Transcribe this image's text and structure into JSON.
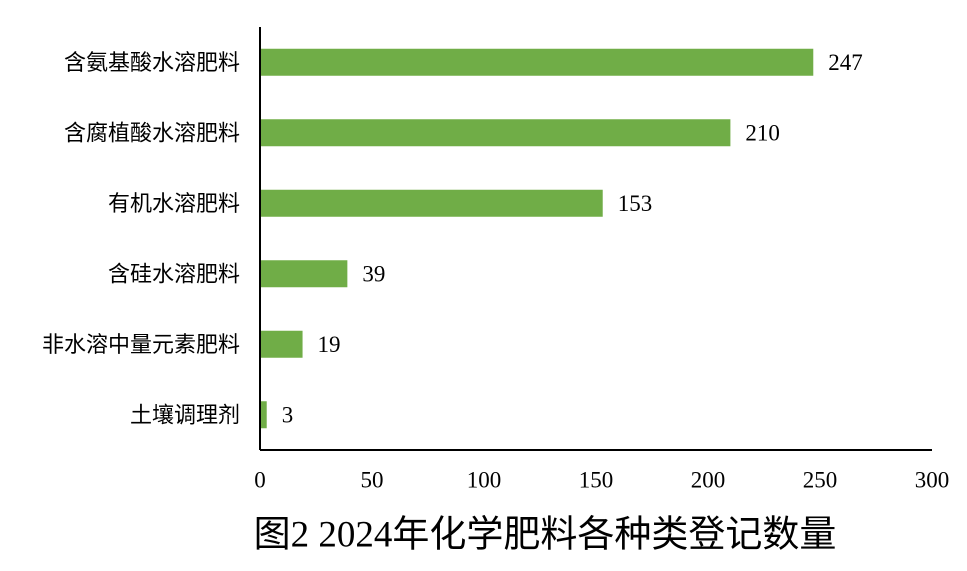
{
  "chart_data": {
    "type": "bar",
    "orientation": "horizontal",
    "title": "图2 2024年化学肥料各种类登记数量",
    "categories": [
      "含氨基酸水溶肥料",
      "含腐植酸水溶肥料",
      "有机水溶肥料",
      "含硅水溶肥料",
      "非水溶中量元素肥料",
      "土壤调理剂"
    ],
    "values": [
      247,
      210,
      153,
      39,
      19,
      3
    ],
    "xlim": [
      0,
      300
    ],
    "xticks": [
      0,
      50,
      100,
      150,
      200,
      250,
      300
    ],
    "xlabel": "",
    "ylabel": "",
    "bar_color": "#70AD47",
    "grid": false,
    "legend": "none",
    "data_labels": true
  }
}
